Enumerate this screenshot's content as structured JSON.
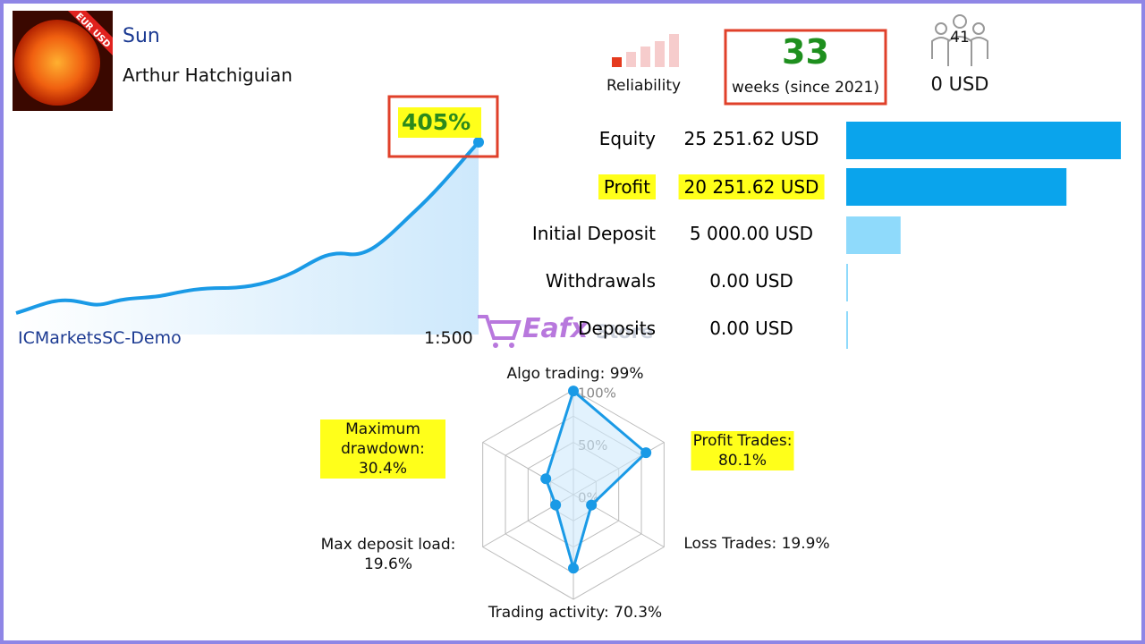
{
  "header": {
    "name": "Sun",
    "author": "Arthur Hatchiguian",
    "badge": "EUR USD"
  },
  "growth": {
    "value_label": "405%",
    "server": "ICMarketsSC-Demo",
    "leverage": "1:500"
  },
  "reliability": {
    "label": "Reliability"
  },
  "weeks": {
    "value": "33",
    "label": "weeks (since 2021)"
  },
  "subscribers": {
    "count": "41",
    "funds": "0 USD"
  },
  "balance": {
    "rows": [
      {
        "label": "Equity",
        "amount": "25 251.62 USD",
        "highlight": false,
        "color": "#0aa4ec"
      },
      {
        "label": "Profit",
        "amount": "20 251.62 USD",
        "highlight": true,
        "color": "#0aa4ec"
      },
      {
        "label": "Initial Deposit",
        "amount": "5 000.00 USD",
        "highlight": false,
        "color": "#8fdafb"
      },
      {
        "label": "Withdrawals",
        "amount": "0.00 USD",
        "highlight": false,
        "color": "#8fdafb"
      },
      {
        "label": "Deposits",
        "amount": "0.00 USD",
        "highlight": false,
        "color": "#8fdafb"
      }
    ]
  },
  "watermark": {
    "brand": "Eafx",
    "suffix": "Store"
  },
  "radar": {
    "ticks": [
      {
        "value": 100,
        "label": "100%"
      },
      {
        "value": 50,
        "label": "50%"
      },
      {
        "value": 0,
        "label": "0%"
      }
    ],
    "axes": [
      {
        "label": "Algo trading: 99%",
        "value": 99,
        "highlight": false
      },
      {
        "label": "Profit Trades: 80.1%",
        "value": 80.1,
        "highlight": true
      },
      {
        "label": "Loss Trades: 19.9%",
        "value": 19.9,
        "highlight": false
      },
      {
        "label": "Trading activity: 70.3%",
        "value": 70.3,
        "highlight": false
      },
      {
        "label": "Max deposit load: 19.6%",
        "value": 19.6,
        "highlight": false
      },
      {
        "label": "Maximum drawdown: 30.4%",
        "value": 30.4,
        "highlight": true
      }
    ]
  }
}
